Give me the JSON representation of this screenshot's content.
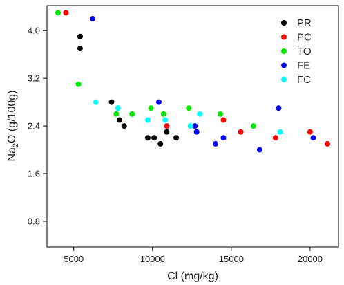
{
  "chart_data": {
    "type": "scatter",
    "xlabel": "Cl (mg/kg)",
    "ylabel_parts": [
      "Na",
      "2",
      "O (g/100g)"
    ],
    "xlim": [
      3300,
      21800
    ],
    "ylim": [
      0.37,
      4.42
    ],
    "xticks": [
      5000,
      10000,
      15000,
      20000
    ],
    "xtick_labels": [
      "5000",
      "10000",
      "15000",
      "20000"
    ],
    "yticks": [
      0.8,
      1.6,
      2.4,
      3.2,
      4.0
    ],
    "ytick_labels": [
      "0.8",
      "1.6",
      "2.4",
      "3.2",
      "4.0"
    ],
    "grid": false,
    "legend_position": "top-right",
    "series": [
      {
        "name": "PR",
        "color": "#000000",
        "points": [
          [
            5400,
            3.9
          ],
          [
            5400,
            3.7
          ],
          [
            7400,
            2.8
          ],
          [
            7900,
            2.5
          ],
          [
            8200,
            2.4
          ],
          [
            9700,
            2.2
          ],
          [
            10100,
            2.2
          ],
          [
            10500,
            2.1
          ],
          [
            10900,
            2.3
          ],
          [
            11500,
            2.2
          ]
        ]
      },
      {
        "name": "PC",
        "color": "#ff0000",
        "points": [
          [
            4500,
            4.3
          ],
          [
            10900,
            2.4
          ],
          [
            14500,
            2.5
          ],
          [
            15600,
            2.3
          ],
          [
            17800,
            2.2
          ],
          [
            20000,
            2.3
          ],
          [
            21100,
            2.1
          ]
        ]
      },
      {
        "name": "TO",
        "color": "#00e600",
        "points": [
          [
            4000,
            4.3
          ],
          [
            5300,
            3.1
          ],
          [
            7700,
            2.6
          ],
          [
            8700,
            2.6
          ],
          [
            9900,
            2.7
          ],
          [
            10700,
            2.6
          ],
          [
            12300,
            2.7
          ],
          [
            14300,
            2.6
          ],
          [
            16400,
            2.4
          ]
        ]
      },
      {
        "name": "FE",
        "color": "#0000ee",
        "points": [
          [
            6200,
            4.2
          ],
          [
            10400,
            2.8
          ],
          [
            12700,
            2.4
          ],
          [
            12800,
            2.3
          ],
          [
            14500,
            2.2
          ],
          [
            14000,
            2.1
          ],
          [
            16800,
            2.0
          ],
          [
            18000,
            2.7
          ],
          [
            20200,
            2.2
          ]
        ]
      },
      {
        "name": "FC",
        "color": "#00ffff",
        "points": [
          [
            6400,
            2.8
          ],
          [
            7800,
            2.7
          ],
          [
            9700,
            2.5
          ],
          [
            10800,
            2.5
          ],
          [
            12400,
            2.4
          ],
          [
            13000,
            2.6
          ],
          [
            18100,
            2.3
          ]
        ]
      }
    ]
  }
}
